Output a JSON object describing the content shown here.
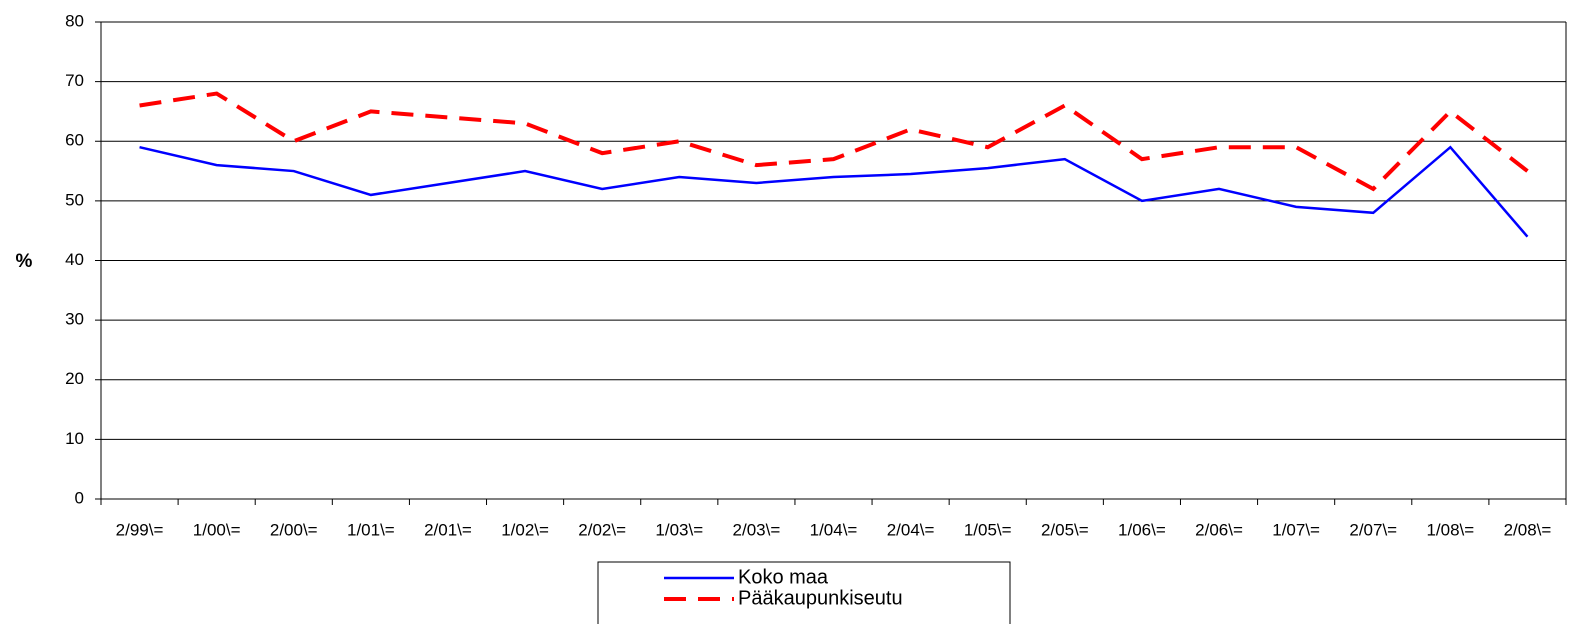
{
  "chart_data": {
    "type": "line",
    "y_label": "%",
    "categories": [
      "2/99\\=",
      "1/00\\=",
      "2/00\\=",
      "1/01\\=",
      "2/01\\=",
      "1/02\\=",
      "2/02\\=",
      "1/03\\=",
      "2/03\\=",
      "1/04\\=",
      "2/04\\=",
      "1/05\\=",
      "2/05\\=",
      "1/06\\=",
      "2/06\\=",
      "1/07\\=",
      "2/07\\=",
      "1/08\\=",
      "2/08\\="
    ],
    "series": [
      {
        "name": "Koko maa",
        "color": "#0000ff",
        "dashed": false,
        "values": [
          59,
          56,
          55,
          51,
          53,
          55,
          52,
          54,
          53,
          54,
          54.5,
          55.5,
          57,
          50,
          52,
          49,
          48,
          59,
          44
        ]
      },
      {
        "name": "Pääkaupunkiseutu",
        "color": "#ff0000",
        "dashed": true,
        "values": [
          66,
          68,
          60,
          65,
          64,
          63,
          58,
          60,
          56,
          57,
          62,
          59,
          66,
          57,
          59,
          59,
          52,
          65,
          55
        ]
      }
    ],
    "ylim": [
      0,
      80
    ],
    "yticks": [
      0,
      10,
      20,
      30,
      40,
      50,
      60,
      70,
      80
    ],
    "grid": true
  }
}
